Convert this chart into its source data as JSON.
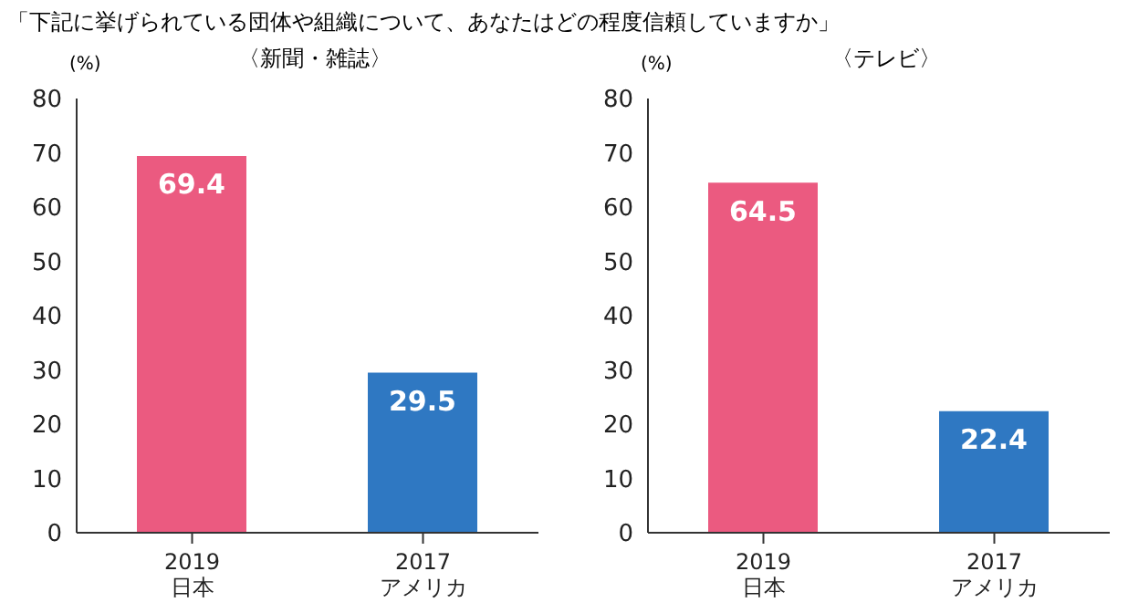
{
  "chart_data": [
    {
      "type": "bar",
      "title": "「下記に挙げられている団体や組織について、あなたはどの程度信頼していますか」",
      "subtitle": "〈新聞・雑誌〉",
      "ylabel": "(%)",
      "categories": [
        "2019\n日本",
        "2017\nアメリカ"
      ],
      "values": [
        69.4,
        29.5
      ],
      "colors": [
        "#eb5a80",
        "#2f78c2"
      ],
      "ylim": [
        0,
        80
      ],
      "yticks": [
        0,
        10,
        20,
        30,
        40,
        50,
        60,
        70,
        80
      ],
      "grid": false,
      "data_labels": true
    },
    {
      "type": "bar",
      "subtitle": "〈テレビ〉",
      "ylabel": "(%)",
      "categories": [
        "2019\n日本",
        "2017\nアメリカ"
      ],
      "values": [
        64.5,
        22.4
      ],
      "colors": [
        "#eb5a80",
        "#2f78c2"
      ],
      "ylim": [
        0,
        80
      ],
      "yticks": [
        0,
        10,
        20,
        30,
        40,
        50,
        60,
        70,
        80
      ],
      "grid": false,
      "data_labels": true
    }
  ]
}
